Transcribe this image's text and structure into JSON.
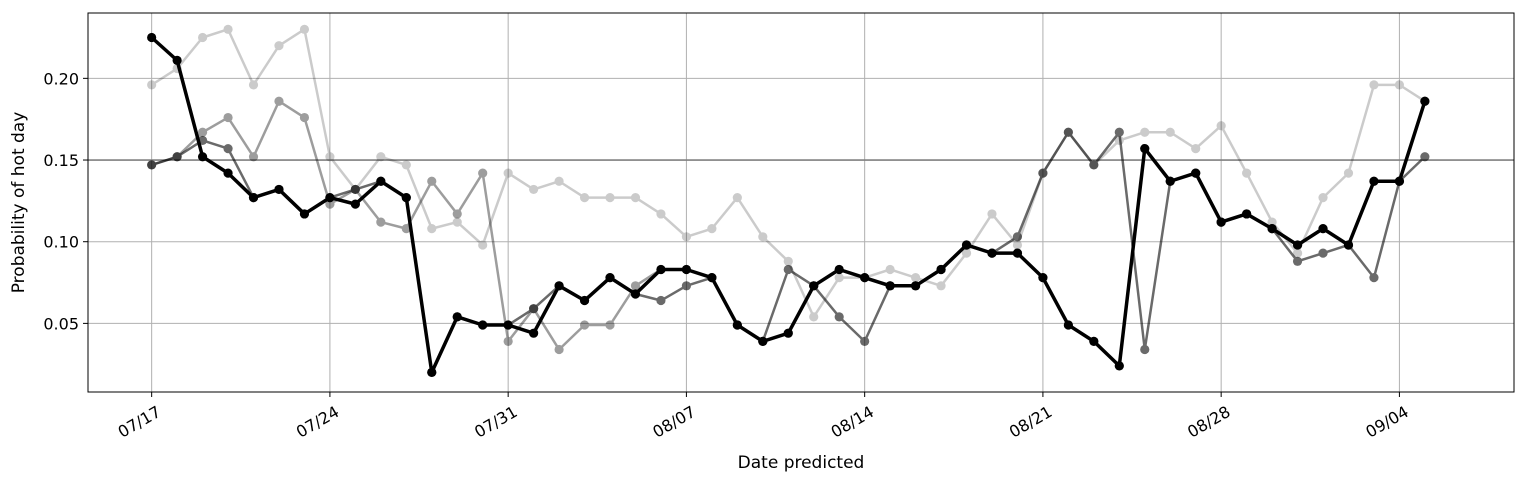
{
  "chart_data": {
    "type": "line",
    "title": "",
    "xlabel": "Date predicted",
    "ylabel": "Probability of hot day",
    "grid": true,
    "x_ticks": [
      "07/17",
      "07/24",
      "07/31",
      "08/07",
      "08/14",
      "08/21",
      "08/28",
      "09/04"
    ],
    "y_ticks": [
      "0.05",
      "0.10",
      "0.15",
      "0.20"
    ],
    "y_tick_values": [
      0.05,
      0.1,
      0.15,
      0.2
    ],
    "ylim": [
      0.008,
      0.24
    ],
    "xlim": [
      "07/14.5",
      "09/08.5"
    ],
    "reference_line": {
      "y": 0.15,
      "color": "#808080"
    },
    "x": [
      "07/17",
      "07/18",
      "07/19",
      "07/20",
      "07/21",
      "07/22",
      "07/23",
      "07/24",
      "07/25",
      "07/26",
      "07/27",
      "07/28",
      "07/29",
      "07/30",
      "07/31",
      "08/01",
      "08/02",
      "08/03",
      "08/04",
      "08/05",
      "08/06",
      "08/07",
      "08/08",
      "08/09",
      "08/10",
      "08/11",
      "08/12",
      "08/13",
      "08/14",
      "08/15",
      "08/16",
      "08/17",
      "08/18",
      "08/19",
      "08/20",
      "08/21",
      "08/22",
      "08/23",
      "08/24",
      "08/25",
      "08/26",
      "08/27",
      "08/28",
      "08/29",
      "08/30",
      "08/31",
      "09/01",
      "09/02",
      "09/03",
      "09/04",
      "09/05"
    ],
    "series": [
      {
        "color": "#000000",
        "opacity": 0.2,
        "width": 2.5,
        "values": [
          0.196,
          0.206,
          0.225,
          0.23,
          0.196,
          0.22,
          0.23,
          0.152,
          0.132,
          0.152,
          0.147,
          0.108,
          0.112,
          0.098,
          0.142,
          0.132,
          0.137,
          0.127,
          0.127,
          0.127,
          0.117,
          0.103,
          0.108,
          0.127,
          0.103,
          0.088,
          0.054,
          0.078,
          0.078,
          0.083,
          0.078,
          0.073,
          0.093,
          0.117,
          0.098,
          0.142,
          0.167,
          0.147,
          0.162,
          0.167,
          0.167,
          0.157,
          0.171,
          0.142,
          0.112,
          0.093,
          0.127,
          0.142,
          0.196,
          0.196,
          0.186
        ]
      },
      {
        "color": "#000000",
        "opacity": 0.38,
        "width": 2.5,
        "values": [
          0.147,
          0.152,
          0.167,
          0.176,
          0.152,
          0.186,
          0.176,
          0.123,
          0.132,
          0.112,
          0.108,
          0.137,
          0.117,
          0.142,
          0.039,
          0.059,
          0.034,
          0.049,
          0.049,
          0.073,
          0.083,
          0.083,
          0.078,
          0.049,
          0.039,
          0.044,
          0.073,
          0.083,
          0.078,
          0.073,
          0.073,
          0.083,
          0.098,
          0.093,
          0.093,
          0.078,
          0.049,
          0.039,
          0.024,
          0.157,
          0.137,
          0.142,
          0.112,
          0.117,
          0.108,
          0.098,
          0.108,
          0.098,
          0.137,
          0.137,
          0.186
        ]
      },
      {
        "color": "#000000",
        "opacity": 0.58,
        "width": 2.5,
        "values": [
          0.147,
          0.152,
          0.162,
          0.157,
          0.127,
          0.132,
          0.117,
          0.127,
          0.132,
          0.137,
          0.127,
          0.02,
          0.054,
          0.049,
          0.049,
          0.059,
          0.073,
          0.064,
          0.078,
          0.068,
          0.064,
          0.073,
          0.078,
          0.049,
          0.039,
          0.083,
          0.073,
          0.054,
          0.039,
          0.073,
          0.073,
          0.083,
          0.098,
          0.093,
          0.103,
          0.142,
          0.167,
          0.147,
          0.167,
          0.034,
          0.137,
          0.142,
          0.112,
          0.117,
          0.108,
          0.088,
          0.093,
          0.098,
          0.078,
          0.137,
          0.152
        ]
      },
      {
        "color": "#000000",
        "opacity": 1.0,
        "width": 3.5,
        "values": [
          0.225,
          0.211,
          0.152,
          0.142,
          0.127,
          0.132,
          0.117,
          0.127,
          0.123,
          0.137,
          0.127,
          0.02,
          0.054,
          0.049,
          0.049,
          0.044,
          0.073,
          0.064,
          0.078,
          0.068,
          0.083,
          0.083,
          0.078,
          0.049,
          0.039,
          0.044,
          0.073,
          0.083,
          0.078,
          0.073,
          0.073,
          0.083,
          0.098,
          0.093,
          0.093,
          0.078,
          0.049,
          0.039,
          0.024,
          0.157,
          0.137,
          0.142,
          0.112,
          0.117,
          0.108,
          0.098,
          0.108,
          0.098,
          0.137,
          0.137,
          0.186
        ]
      }
    ]
  }
}
